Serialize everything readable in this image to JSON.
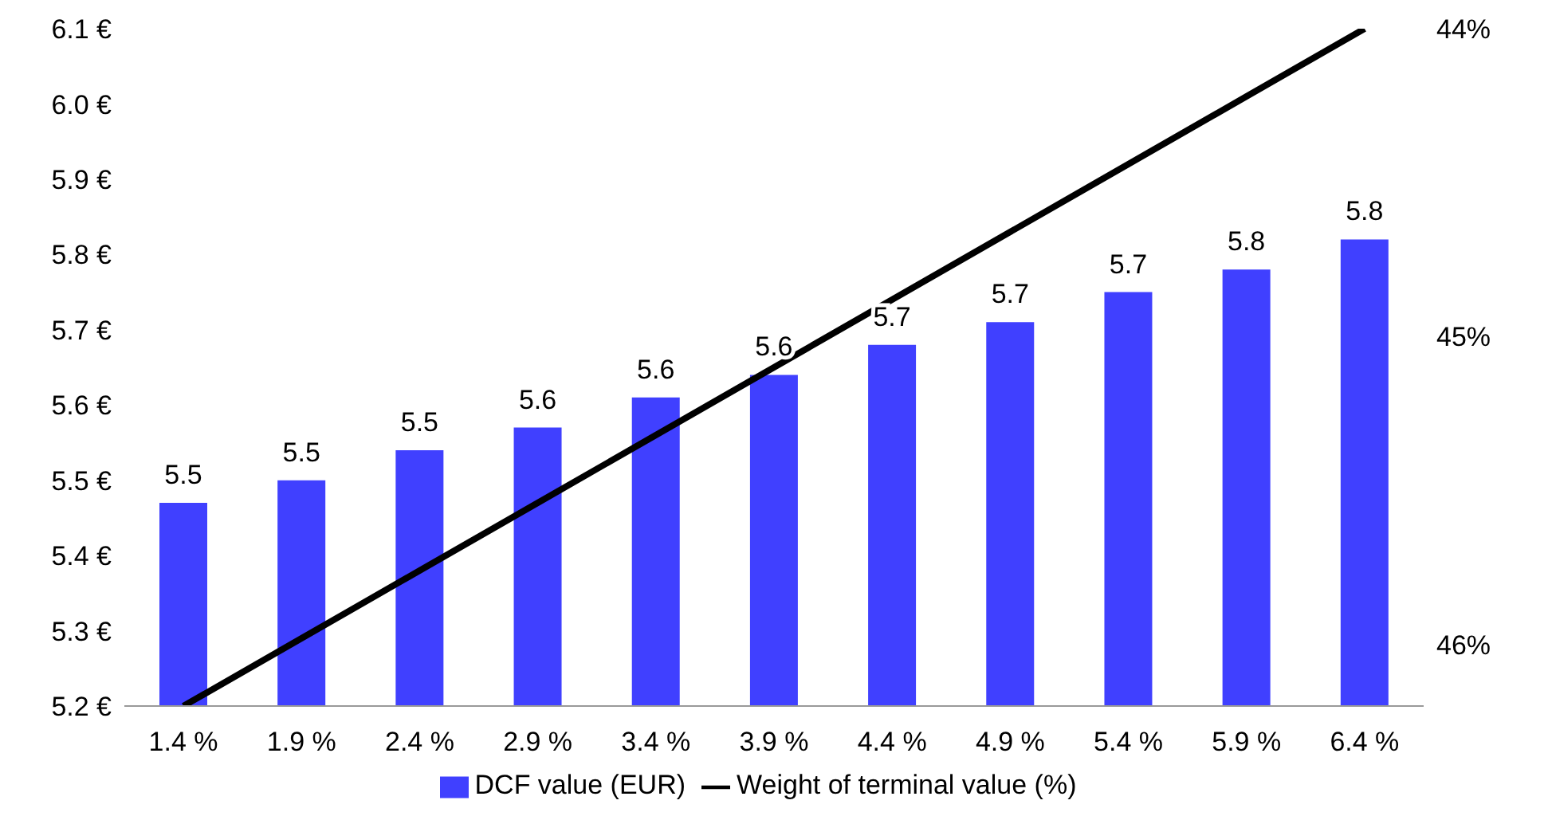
{
  "chart_data": {
    "type": "bar",
    "categories": [
      "1.4 %",
      "1.9 %",
      "2.4 %",
      "2.9 %",
      "3.4 %",
      "3.9 %",
      "4.4 %",
      "4.9 %",
      "5.4 %",
      "5.9 %",
      "6.4 %"
    ],
    "series": [
      {
        "name": "DCF value (EUR)",
        "color": "#4040ff",
        "values": [
          5.47,
          5.5,
          5.54,
          5.57,
          5.61,
          5.64,
          5.68,
          5.71,
          5.75,
          5.78,
          5.82
        ],
        "value_labels": [
          "5.5",
          "5.5",
          "5.5",
          "5.6",
          "5.6",
          "5.6",
          "5.7",
          "5.7",
          "5.7",
          "5.8",
          "5.8"
        ]
      },
      {
        "name": "Weight of terminal value (%)",
        "type": "line",
        "axis": "y2",
        "color": "#000000",
        "values": [
          46.2,
          45.98,
          45.76,
          45.54,
          45.32,
          45.1,
          44.88,
          44.66,
          44.44,
          44.22,
          44.0
        ]
      }
    ],
    "ylim": [
      5.2,
      6.1
    ],
    "yticks": [
      {
        "value": 5.2,
        "label": "5.2 €"
      },
      {
        "value": 5.3,
        "label": "5.3 €"
      },
      {
        "value": 5.4,
        "label": "5.4 €"
      },
      {
        "value": 5.5,
        "label": "5.5 €"
      },
      {
        "value": 5.6,
        "label": "5.6 €"
      },
      {
        "value": 5.7,
        "label": "5.7 €"
      },
      {
        "value": 5.8,
        "label": "5.8 €"
      },
      {
        "value": 5.9,
        "label": "5.9 €"
      },
      {
        "value": 6.0,
        "label": "6.0 €"
      },
      {
        "value": 6.1,
        "label": "6.1 €"
      }
    ],
    "y2lim": [
      46.2,
      44
    ],
    "y2ticks": [
      {
        "value": 44,
        "label": "44%"
      },
      {
        "value": 45,
        "label": "45%"
      },
      {
        "value": 46,
        "label": "46%"
      }
    ],
    "grid": false,
    "legend": "bottom",
    "marker": "none",
    "line_style": "solid"
  }
}
